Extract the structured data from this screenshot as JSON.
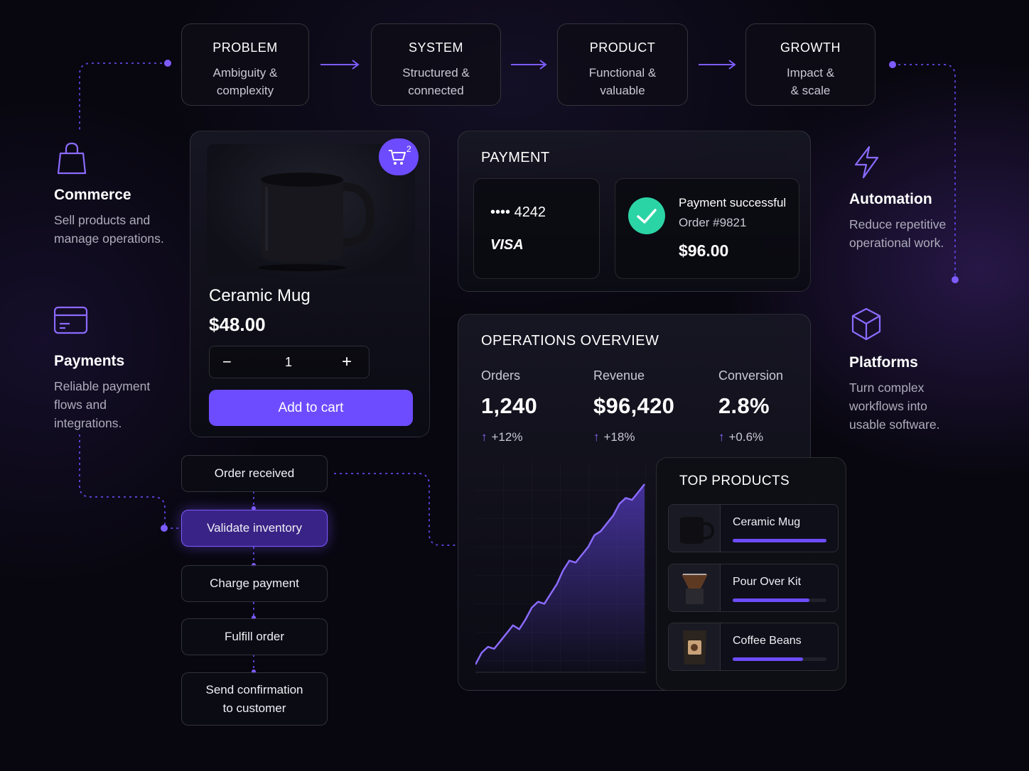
{
  "steps": [
    {
      "title": "PROBLEM",
      "sub": "Ambiguity &\ncomplexity"
    },
    {
      "title": "SYSTEM",
      "sub": "Structured &\nconnected"
    },
    {
      "title": "PRODUCT",
      "sub": "Functional &\nvaluable"
    },
    {
      "title": "GROWTH",
      "sub": "Impact &\n& scale"
    }
  ],
  "side_left": [
    {
      "icon": "shopping-bag-icon",
      "title": "Commerce",
      "desc": "Sell products and\nmanage operations."
    },
    {
      "icon": "credit-card-icon",
      "title": "Payments",
      "desc": "Reliable payment\nflows and\nintegrations."
    }
  ],
  "side_right": [
    {
      "icon": "lightning-bolt-icon",
      "title": "Automation",
      "desc": "Reduce repetitive\noperational work."
    },
    {
      "icon": "cube-icon",
      "title": "Platforms",
      "desc": "Turn complex\nworkflows into\nusable software."
    }
  ],
  "product": {
    "name": "Ceramic Mug",
    "price": "$48.00",
    "quantity": "1",
    "minus": "−",
    "plus": "+",
    "add_to_cart": "Add to cart",
    "cart_count": "2"
  },
  "payment": {
    "title": "PAYMENT",
    "card_number": "•••• 4242",
    "card_brand": "VISA",
    "status": "Payment successful",
    "order": "Order #9821",
    "amount": "$96.00"
  },
  "operations": {
    "title": "OPERATIONS OVERVIEW",
    "metrics": [
      {
        "label": "Orders",
        "value": "1,240",
        "change": "+12%"
      },
      {
        "label": "Revenue",
        "value": "$96,420",
        "change": "+18%"
      },
      {
        "label": "Conversion",
        "value": "2.8%",
        "change": "+0.6%"
      }
    ],
    "trend": [
      0.04,
      0.1,
      0.13,
      0.12,
      0.16,
      0.2,
      0.24,
      0.22,
      0.27,
      0.33,
      0.36,
      0.35,
      0.4,
      0.45,
      0.52,
      0.57,
      0.56,
      0.6,
      0.64,
      0.7,
      0.72,
      0.76,
      0.8,
      0.86,
      0.89,
      0.88,
      0.92,
      0.96
    ]
  },
  "top_products": {
    "title": "TOP PRODUCTS",
    "items": [
      {
        "name": "Ceramic Mug",
        "share": 1.0
      },
      {
        "name": "Pour Over Kit",
        "share": 0.82
      },
      {
        "name": "Coffee Beans",
        "share": 0.75
      }
    ]
  },
  "workflow": [
    "Order received",
    "Validate inventory",
    "Charge payment",
    "Fulfill order",
    "Send confirmation\nto customer"
  ],
  "colors": {
    "accent": "#6d4cff",
    "success": "#2bd4a4",
    "background": "#08070f"
  }
}
